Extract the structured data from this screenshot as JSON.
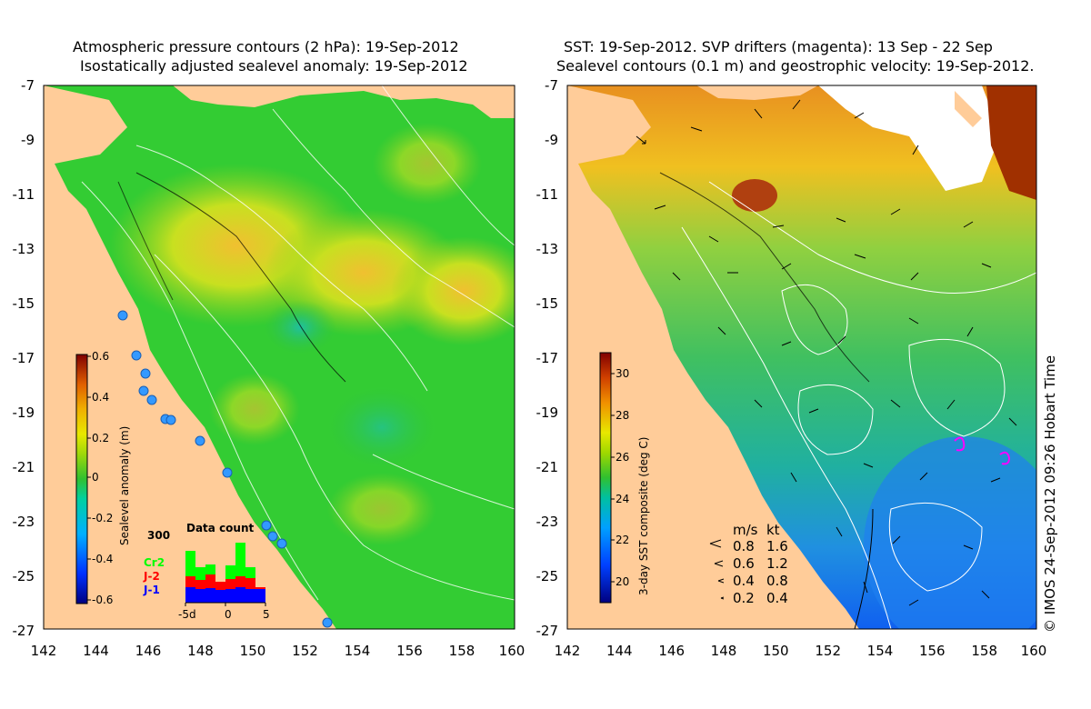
{
  "left_panel": {
    "title_line1": "Atmospheric pressure contours (2 hPa): 19-Sep-2012",
    "title_line2": "Isostatically adjusted sealevel anomaly: 19-Sep-2012",
    "x_ticks": [
      "142",
      "144",
      "146",
      "148",
      "150",
      "152",
      "154",
      "156",
      "158",
      "160"
    ],
    "y_ticks": [
      "-7",
      "-9",
      "-11",
      "-13",
      "-15",
      "-17",
      "-19",
      "-21",
      "-23",
      "-25",
      "-27"
    ],
    "colorbar": {
      "label": "Sealevel anomaly (m)",
      "ticks": [
        "0.6",
        "0.4",
        "0.2",
        "0",
        "-0.2",
        "-0.4",
        "-0.6"
      ],
      "range": [
        -0.6,
        0.6
      ]
    },
    "data_count": {
      "title": "Data count",
      "ymax_label": "300",
      "x_labels": [
        "-5d",
        "0",
        "5"
      ],
      "legend": [
        {
          "name": "Cr2",
          "color": "#00ff00"
        },
        {
          "name": "J-2",
          "color": "#ff0000"
        },
        {
          "name": "J-1",
          "color": "#0000ff"
        }
      ]
    }
  },
  "right_panel": {
    "title_line1": "SST: 19-Sep-2012. SVP drifters (magenta): 13 Sep - 22 Sep",
    "title_line2": "Sealevel contours (0.1 m) and geostrophic velocity: 19-Sep-2012.",
    "x_ticks": [
      "142",
      "144",
      "146",
      "148",
      "150",
      "152",
      "154",
      "156",
      "158",
      "160"
    ],
    "y_ticks": [
      "-7",
      "-9",
      "-11",
      "-13",
      "-15",
      "-17",
      "-19",
      "-21",
      "-23",
      "-25",
      "-27"
    ],
    "colorbar": {
      "label": "3-day SST composite (deg C)",
      "ticks": [
        "30",
        "28",
        "26",
        "24",
        "22",
        "20"
      ],
      "range": [
        19,
        31
      ]
    },
    "velocity_legend": {
      "header_ms": "m/s",
      "header_kt": "kt",
      "rows": [
        {
          "ms": "0.8",
          "kt": "1.6"
        },
        {
          "ms": "0.6",
          "kt": "1.2"
        },
        {
          "ms": "0.4",
          "kt": "0.8"
        },
        {
          "ms": "0.2",
          "kt": "0.4"
        }
      ]
    }
  },
  "credit": "© IMOS 24-Sep-2012 09:26 Hobart Time",
  "colors": {
    "land": "#ffcc99",
    "ocean_green": "#33cc33",
    "contour": "#ffffff"
  }
}
